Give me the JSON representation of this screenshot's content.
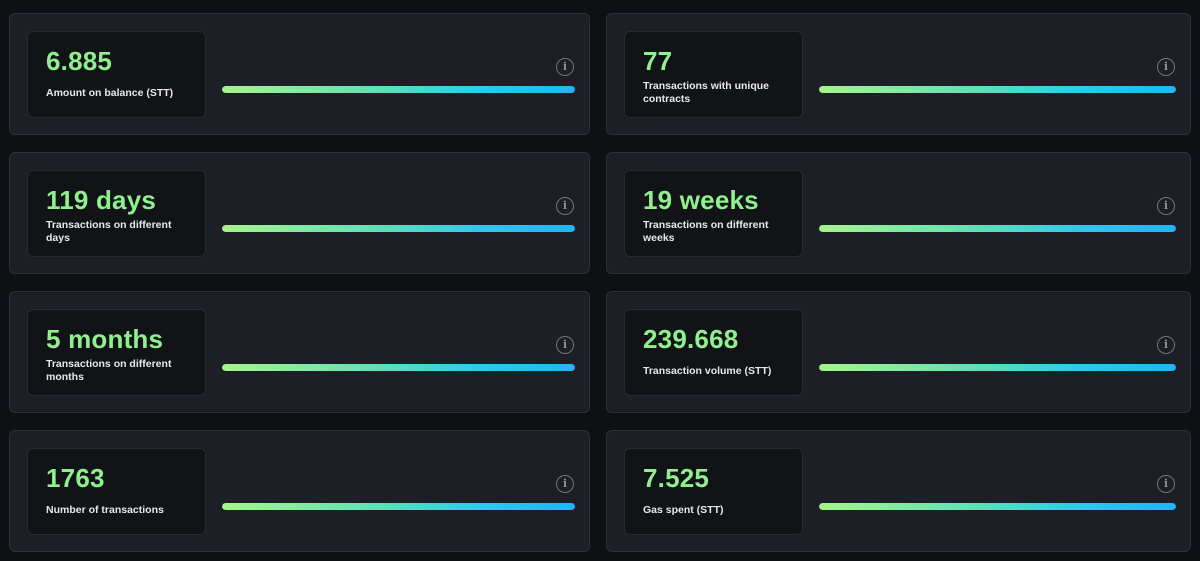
{
  "colors": {
    "background": "#0f1013",
    "card": "#1c1f25",
    "value_text": "#8ff08e",
    "bar_gradient_start": "#a6f58a",
    "bar_gradient_end": "#1fb6f5"
  },
  "info_glyph": "i",
  "stats": [
    {
      "value": "6.885",
      "label": "Amount on balance (STT)",
      "progress": 1.0,
      "icon": "info-icon"
    },
    {
      "value": "77",
      "label": "Transactions with unique contracts",
      "progress": 1.0,
      "icon": "info-icon"
    },
    {
      "value": "119 days",
      "label": "Transactions on different days",
      "progress": 1.0,
      "icon": "info-icon"
    },
    {
      "value": "19 weeks",
      "label": "Transactions on different weeks",
      "progress": 1.0,
      "icon": "info-icon"
    },
    {
      "value": "5 months",
      "label": "Transactions on different months",
      "progress": 1.0,
      "icon": "info-icon"
    },
    {
      "value": "239.668",
      "label": "Transaction volume (STT)",
      "progress": 1.0,
      "icon": "info-icon"
    },
    {
      "value": "1763",
      "label": "Number of transactions",
      "progress": 1.0,
      "icon": "info-icon"
    },
    {
      "value": "7.525",
      "label": "Gas spent (STT)",
      "progress": 1.0,
      "icon": "info-icon"
    }
  ]
}
